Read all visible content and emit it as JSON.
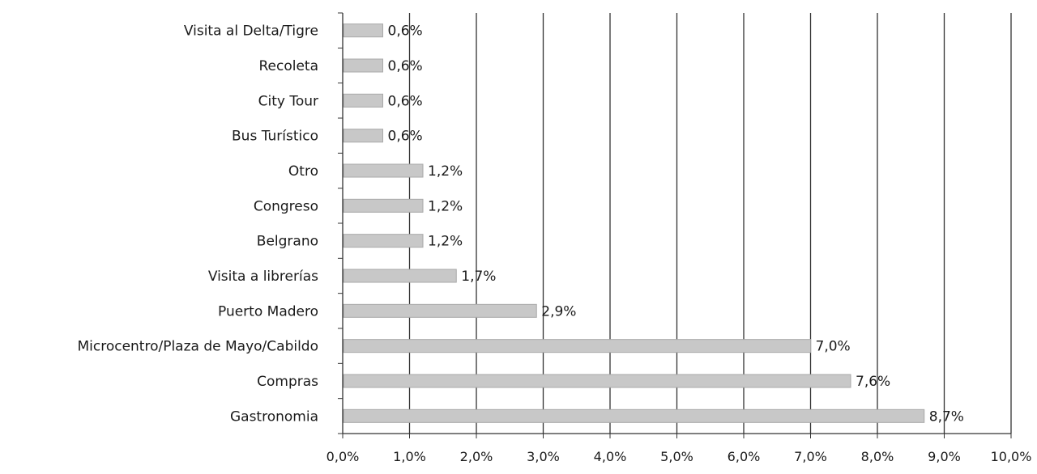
{
  "chart_data": {
    "type": "bar",
    "orientation": "horizontal",
    "categories": [
      "Visita al Delta/Tigre",
      "Recoleta",
      "City Tour",
      "Bus Turístico",
      "Otro",
      "Congreso",
      "Belgrano",
      "Visita a librerías",
      "Puerto Madero",
      "Microcentro/Plaza de Mayo/Cabildo",
      "Compras",
      "Gastronomia"
    ],
    "values": [
      0.6,
      0.6,
      0.6,
      0.6,
      1.2,
      1.2,
      1.2,
      1.7,
      2.9,
      7.0,
      7.6,
      8.7
    ],
    "value_labels": [
      "0,6%",
      "0,6%",
      "0,6%",
      "0,6%",
      "1,2%",
      "1,2%",
      "1,2%",
      "1,7%",
      "2,9%",
      "7,0%",
      "7,6%",
      "8,7%"
    ],
    "x_ticks": [
      0,
      1,
      2,
      3,
      4,
      5,
      6,
      7,
      8,
      9,
      10
    ],
    "x_tick_labels": [
      "0,0%",
      "1,0%",
      "2,0%",
      "3,0%",
      "4,0%",
      "5,0%",
      "6,0%",
      "7,0%",
      "8,0%",
      "9,0%",
      "10,0%"
    ],
    "xlim": [
      0,
      10
    ],
    "title": "",
    "xlabel": "",
    "ylabel": "",
    "grid": "vertical",
    "legend": "none",
    "colors": {
      "bar_fill": "#c8c8c8",
      "bar_stroke": "#a9a9a9",
      "grid": "#333333",
      "axis": "#333333"
    }
  }
}
